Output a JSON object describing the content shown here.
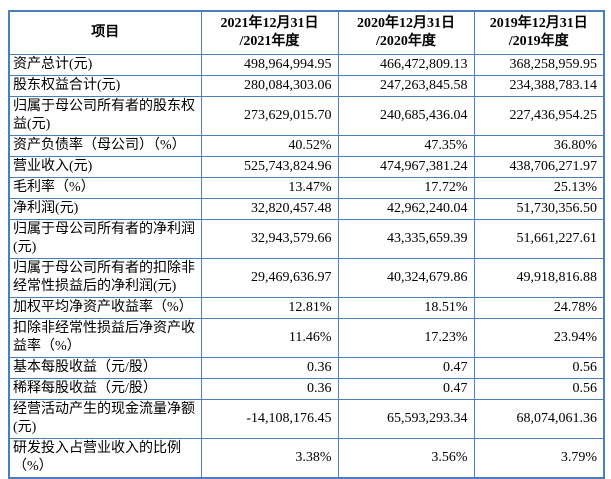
{
  "table": {
    "columns": [
      "项目",
      "2021年12月31日\n/2021年度",
      "2020年12月31日\n/2020年度",
      "2019年12月31日\n/2019年度"
    ],
    "border_color": "#4a7ebc",
    "rows": [
      {
        "label": "资产总计(元)",
        "y2021": "498,964,994.95",
        "y2020": "466,472,809.13",
        "y2019": "368,258,959.95"
      },
      {
        "label": "股东权益合计(元)",
        "y2021": "280,084,303.06",
        "y2020": "247,263,845.58",
        "y2019": "234,388,783.14"
      },
      {
        "label": "归属于母公司所有者的股东权益(元)",
        "y2021": "273,629,015.70",
        "y2020": "240,685,436.04",
        "y2019": "227,436,954.25"
      },
      {
        "label": "资产负债率（母公司）（%）",
        "y2021": "40.52%",
        "y2020": "47.35%",
        "y2019": "36.80%"
      },
      {
        "label": "营业收入(元)",
        "y2021": "525,743,824.96",
        "y2020": "474,967,381.24",
        "y2019": "438,706,271.97"
      },
      {
        "label": "毛利率（%）",
        "y2021": "13.47%",
        "y2020": "17.72%",
        "y2019": "25.13%"
      },
      {
        "label": "净利润(元)",
        "y2021": "32,820,457.48",
        "y2020": "42,962,240.04",
        "y2019": "51,730,356.50"
      },
      {
        "label": "归属于母公司所有者的净利润(元)",
        "y2021": "32,943,579.66",
        "y2020": "43,335,659.39",
        "y2019": "51,661,227.61"
      },
      {
        "label": "归属于母公司所有者的扣除非经常性损益后的净利润(元)",
        "y2021": "29,469,636.97",
        "y2020": "40,324,679.86",
        "y2019": "49,918,816.88"
      },
      {
        "label": "加权平均净资产收益率（%）",
        "y2021": "12.81%",
        "y2020": "18.51%",
        "y2019": "24.78%"
      },
      {
        "label": "扣除非经常性损益后净资产收益率（%）",
        "y2021": "11.46%",
        "y2020": "17.23%",
        "y2019": "23.94%"
      },
      {
        "label": "基本每股收益（元/股）",
        "y2021": "0.36",
        "y2020": "0.47",
        "y2019": "0.56"
      },
      {
        "label": "稀释每股收益（元/股）",
        "y2021": "0.36",
        "y2020": "0.47",
        "y2019": "0.56"
      },
      {
        "label": "经营活动产生的现金流量净额(元)",
        "y2021": "-14,108,176.45",
        "y2020": "65,593,293.34",
        "y2019": "68,074,061.36"
      },
      {
        "label": "研发投入占营业收入的比例（%）",
        "y2021": "3.38%",
        "y2020": "3.56%",
        "y2019": "3.79%"
      }
    ]
  }
}
